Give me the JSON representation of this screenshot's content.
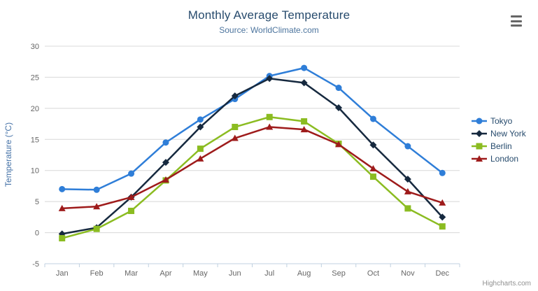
{
  "header": {
    "title": "Monthly Average Temperature",
    "subtitle": "Source: WorldClimate.com"
  },
  "credits": {
    "text": "Highcharts.com"
  },
  "icons": {
    "context_menu": "hamburger-icon"
  },
  "colors": {
    "title": "#274b6d",
    "subtitle": "#4d759e",
    "axis_title": "#4572a7",
    "tick_label": "#666666",
    "gridline": "#d8d8d8",
    "axis_line": "#c0d0e0",
    "legend_text": "#274b6d",
    "credits_text": "#909090"
  },
  "chart_data": {
    "type": "line",
    "title": "Monthly Average Temperature",
    "subtitle": "Source: WorldClimate.com",
    "categories": [
      "Jan",
      "Feb",
      "Mar",
      "Apr",
      "May",
      "Jun",
      "Jul",
      "Aug",
      "Sep",
      "Oct",
      "Nov",
      "Dec"
    ],
    "series": [
      {
        "name": "Tokyo",
        "color": "#2f7ed8",
        "marker": "circle",
        "values": [
          7.0,
          6.9,
          9.5,
          14.5,
          18.2,
          21.5,
          25.2,
          26.5,
          23.3,
          18.3,
          13.9,
          9.6
        ]
      },
      {
        "name": "New York",
        "color": "#16293f",
        "marker": "diamond",
        "values": [
          -0.2,
          0.8,
          5.7,
          11.3,
          17.0,
          22.0,
          24.8,
          24.1,
          20.1,
          14.1,
          8.6,
          2.5
        ]
      },
      {
        "name": "Berlin",
        "color": "#8bbc21",
        "marker": "square",
        "values": [
          -0.9,
          0.6,
          3.5,
          8.4,
          13.5,
          17.0,
          18.6,
          17.9,
          14.3,
          9.0,
          3.9,
          1.0
        ]
      },
      {
        "name": "London",
        "color": "#9e1b1b",
        "marker": "triangle",
        "values": [
          3.9,
          4.2,
          5.7,
          8.5,
          11.9,
          15.2,
          17.0,
          16.6,
          14.2,
          10.3,
          6.6,
          4.8
        ]
      }
    ],
    "xlabel": "",
    "ylabel": "Temperature (°C)",
    "ylim": [
      -5,
      30
    ],
    "ytick_interval": 5,
    "grid": true,
    "legend_position": "right"
  }
}
